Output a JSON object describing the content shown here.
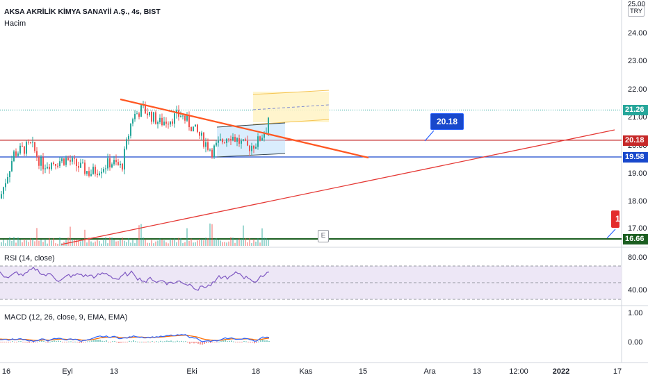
{
  "header": {
    "title": "AKSA AKRİLİK KİMYA SANAYİİ A.Ş., 4s, BIST",
    "subtitle": "Hacim"
  },
  "currency_button": "TRY",
  "price_axis": {
    "top_partial": "25.00",
    "ticks": [
      "24.00",
      "23.00",
      "22.00",
      "21.00",
      "20.00",
      "19.00",
      "18.00",
      "17.00"
    ]
  },
  "price_tags": [
    {
      "label": "21.26",
      "color": "#26a69a"
    },
    {
      "label": "20.18",
      "color": "#c62828"
    },
    {
      "label": "19.58",
      "color": "#1848cc"
    },
    {
      "label": "16.66",
      "color": "#1b5e20"
    }
  ],
  "callouts": {
    "blue": "20.18",
    "red": "1"
  },
  "event_marker": "E",
  "rsi": {
    "label": "RSI (14, close)",
    "ticks": [
      "80.00",
      "40.00"
    ]
  },
  "macd": {
    "label": "MACD (12, 26, close, 9, EMA, EMA)",
    "ticks": [
      "1.00",
      "0.00"
    ]
  },
  "time_axis": [
    {
      "label": "16",
      "bold": false
    },
    {
      "label": "Eyl",
      "bold": false
    },
    {
      "label": "13",
      "bold": false
    },
    {
      "label": "Eki",
      "bold": false
    },
    {
      "label": "18",
      "bold": false
    },
    {
      "label": "Kas",
      "bold": false
    },
    {
      "label": "15",
      "bold": false
    },
    {
      "label": "Ara",
      "bold": false
    },
    {
      "label": "13",
      "bold": false
    },
    {
      "label": "12:00",
      "bold": false
    },
    {
      "label": "2022",
      "bold": true
    },
    {
      "label": "17",
      "bold": false
    }
  ],
  "colors": {
    "up": "#26a69a",
    "down": "#ef5350",
    "rsi_line": "#7e57c2",
    "rsi_band": "#ede7f6",
    "macd_line": "#2962ff",
    "signal_line": "#ff6d00",
    "trend_orange": "#ff5722",
    "support_blue": "#1848cc",
    "resistance_red": "#c62828",
    "green_line": "#1b5e20"
  }
}
